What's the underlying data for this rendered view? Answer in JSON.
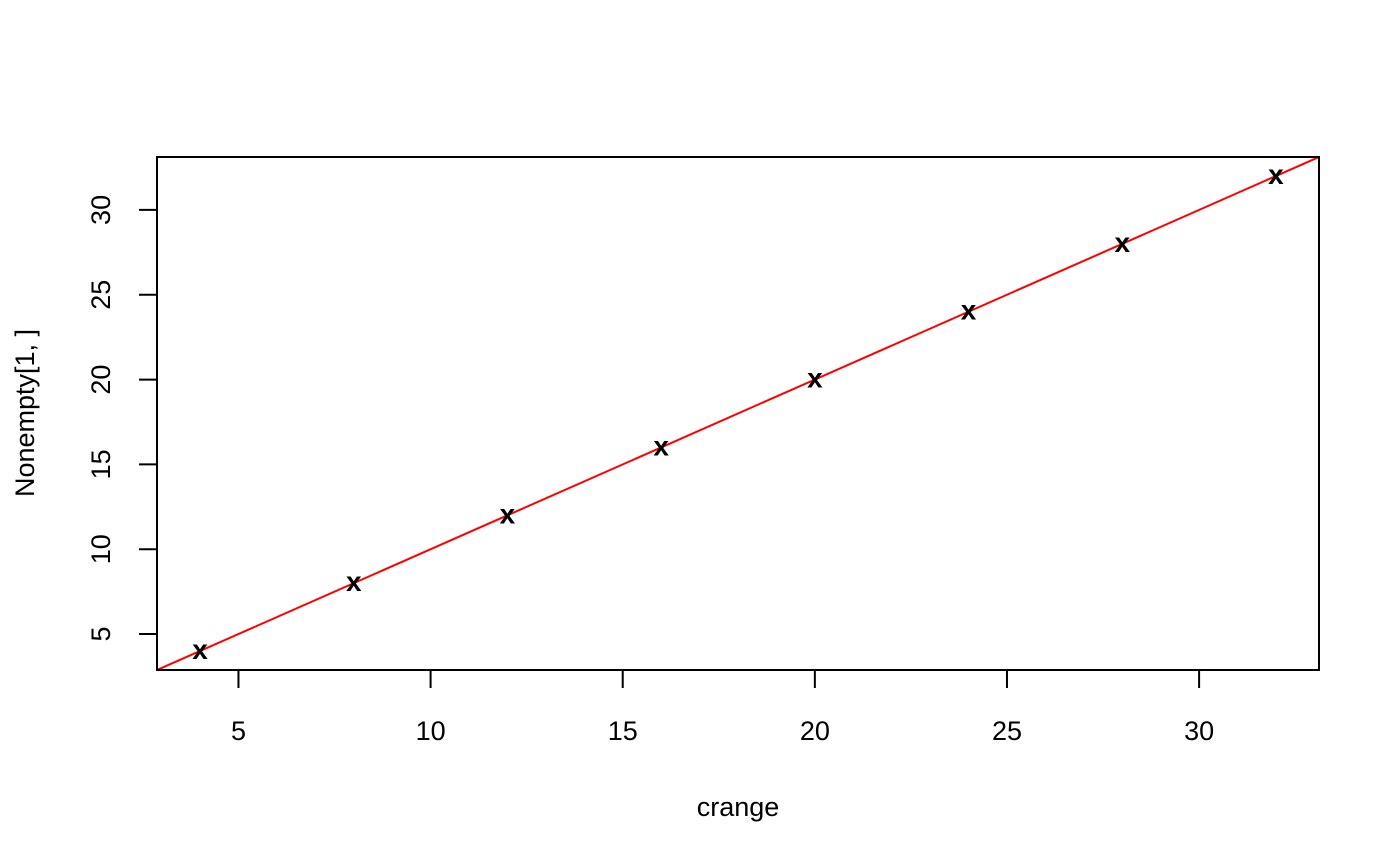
{
  "chart_data": {
    "type": "scatter",
    "title": "",
    "xlabel": "crange",
    "ylabel": "Nonempty[1, ]",
    "xlim": [
      2.88,
      33.12
    ],
    "ylim": [
      2.88,
      33.12
    ],
    "xticks": [
      5,
      10,
      15,
      20,
      25,
      30
    ],
    "yticks": [
      5,
      10,
      15,
      20,
      25,
      30
    ],
    "grid": false,
    "marker": "x",
    "points": [
      {
        "x": 4,
        "y": 4
      },
      {
        "x": 8,
        "y": 8
      },
      {
        "x": 12,
        "y": 12
      },
      {
        "x": 16,
        "y": 16
      },
      {
        "x": 20,
        "y": 20
      },
      {
        "x": 24,
        "y": 24
      },
      {
        "x": 28,
        "y": 28
      },
      {
        "x": 32,
        "y": 32
      }
    ],
    "reference_line": {
      "intercept": 0,
      "slope": 1,
      "color": "#ff0000"
    },
    "point_color": "#000000"
  }
}
